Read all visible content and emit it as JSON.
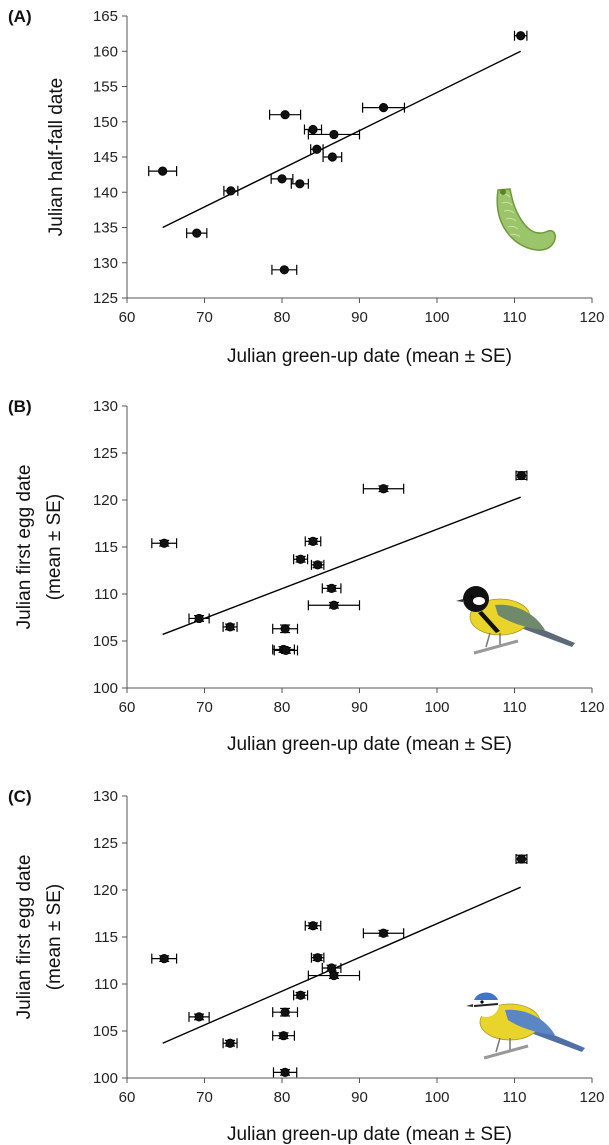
{
  "chart_data": [
    {
      "type": "scatter",
      "panel_label": "(A)",
      "xlabel": "Julian green-up date (mean ± SE)",
      "ylabel_lines": [
        "Julian half-fall date"
      ],
      "xlim": [
        60,
        120
      ],
      "ylim": [
        125,
        165
      ],
      "xticks": [
        "60",
        "70",
        "80",
        "90",
        "100",
        "110",
        "120"
      ],
      "yticks": [
        "125",
        "130",
        "135",
        "140",
        "145",
        "150",
        "155",
        "160",
        "165"
      ],
      "points": [
        {
          "x": 64.6,
          "y": 143.0,
          "xerr": 1.8
        },
        {
          "x": 69.0,
          "y": 134.2,
          "xerr": 1.3
        },
        {
          "x": 73.4,
          "y": 140.2,
          "xerr": 0.9
        },
        {
          "x": 80.4,
          "y": 151.0,
          "xerr": 2.0
        },
        {
          "x": 80.0,
          "y": 141.9,
          "xerr": 1.4
        },
        {
          "x": 80.3,
          "y": 129.0,
          "xerr": 1.6
        },
        {
          "x": 82.3,
          "y": 141.2,
          "xerr": 1.1
        },
        {
          "x": 84.0,
          "y": 148.9,
          "xerr": 1.1
        },
        {
          "x": 84.5,
          "y": 146.1,
          "xerr": 0.8
        },
        {
          "x": 86.7,
          "y": 148.2,
          "xerr": 3.3
        },
        {
          "x": 86.5,
          "y": 145.0,
          "xerr": 1.2
        },
        {
          "x": 93.1,
          "y": 152.0,
          "xerr": 2.7
        },
        {
          "x": 110.8,
          "y": 162.2,
          "xerr": 0.8
        }
      ],
      "trendline": {
        "x": [
          64.6,
          110.8
        ],
        "y": [
          135.0,
          160.0
        ]
      },
      "icon": "caterpillar-icon"
    },
    {
      "type": "scatter",
      "panel_label": "(B)",
      "xlabel": "Julian green-up date (mean ± SE)",
      "ylabel_lines": [
        "Julian first egg date",
        "(mean ± SE)"
      ],
      "xlim": [
        60,
        120
      ],
      "ylim": [
        100,
        130
      ],
      "xticks": [
        "60",
        "70",
        "80",
        "90",
        "100",
        "110",
        "120"
      ],
      "yticks": [
        "100",
        "105",
        "110",
        "115",
        "120",
        "125",
        "130"
      ],
      "points": [
        {
          "x": 64.8,
          "y": 115.4,
          "xerr": 1.6,
          "yerr": 0.3
        },
        {
          "x": 69.3,
          "y": 107.4,
          "xerr": 1.3,
          "yerr": 0.3
        },
        {
          "x": 73.3,
          "y": 106.5,
          "xerr": 0.9,
          "yerr": 0.3
        },
        {
          "x": 80.4,
          "y": 106.3,
          "xerr": 1.6,
          "yerr": 0.4
        },
        {
          "x": 80.2,
          "y": 104.1,
          "xerr": 1.4,
          "yerr": 0.3
        },
        {
          "x": 80.5,
          "y": 104.0,
          "xerr": 1.5,
          "yerr": 0.3
        },
        {
          "x": 82.4,
          "y": 113.7,
          "xerr": 0.9,
          "yerr": 0.3
        },
        {
          "x": 84.0,
          "y": 115.6,
          "xerr": 1.0,
          "yerr": 0.3
        },
        {
          "x": 84.6,
          "y": 113.1,
          "xerr": 0.8,
          "yerr": 0.3
        },
        {
          "x": 86.4,
          "y": 110.6,
          "xerr": 1.2,
          "yerr": 0.3
        },
        {
          "x": 86.7,
          "y": 108.8,
          "xerr": 3.3,
          "yerr": 0.3
        },
        {
          "x": 93.1,
          "y": 121.2,
          "xerr": 2.6,
          "yerr": 0.3
        },
        {
          "x": 110.9,
          "y": 122.6,
          "xerr": 0.7,
          "yerr": 0.4
        }
      ],
      "trendline": {
        "x": [
          64.6,
          110.8
        ],
        "y": [
          105.7,
          120.3
        ]
      },
      "icon": "great-tit-icon"
    },
    {
      "type": "scatter",
      "panel_label": "(C)",
      "xlabel": "Julian green-up date (mean ± SE)",
      "ylabel_lines": [
        "Julian first egg date",
        "(mean ± SE)"
      ],
      "xlim": [
        60,
        120
      ],
      "ylim": [
        100,
        130
      ],
      "xticks": [
        "60",
        "70",
        "80",
        "90",
        "100",
        "110",
        "120"
      ],
      "yticks": [
        "100",
        "105",
        "110",
        "115",
        "120",
        "125",
        "130"
      ],
      "points": [
        {
          "x": 64.8,
          "y": 112.7,
          "xerr": 1.6,
          "yerr": 0.3
        },
        {
          "x": 69.3,
          "y": 106.5,
          "xerr": 1.3,
          "yerr": 0.3
        },
        {
          "x": 73.3,
          "y": 103.7,
          "xerr": 0.9,
          "yerr": 0.3
        },
        {
          "x": 80.4,
          "y": 107.0,
          "xerr": 1.6,
          "yerr": 0.4
        },
        {
          "x": 80.2,
          "y": 104.5,
          "xerr": 1.4,
          "yerr": 0.3
        },
        {
          "x": 80.4,
          "y": 100.6,
          "xerr": 1.5,
          "yerr": 0.3
        },
        {
          "x": 82.4,
          "y": 108.8,
          "xerr": 0.9,
          "yerr": 0.3
        },
        {
          "x": 84.0,
          "y": 116.2,
          "xerr": 1.0,
          "yerr": 0.3
        },
        {
          "x": 84.6,
          "y": 112.8,
          "xerr": 0.8,
          "yerr": 0.3
        },
        {
          "x": 86.4,
          "y": 111.7,
          "xerr": 1.2,
          "yerr": 0.3
        },
        {
          "x": 86.7,
          "y": 110.9,
          "xerr": 3.3,
          "yerr": 0.3
        },
        {
          "x": 93.1,
          "y": 115.4,
          "xerr": 2.6,
          "yerr": 0.3
        },
        {
          "x": 110.9,
          "y": 123.3,
          "xerr": 0.7,
          "yerr": 0.4
        }
      ],
      "trendline": {
        "x": [
          64.6,
          110.8
        ],
        "y": [
          103.7,
          120.3
        ]
      },
      "icon": "blue-tit-icon"
    }
  ]
}
